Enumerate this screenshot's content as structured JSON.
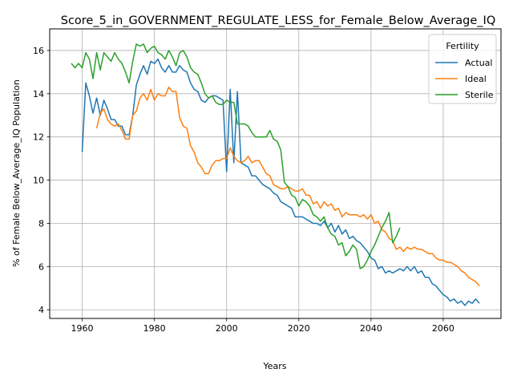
{
  "chart_data": {
    "type": "line",
    "title": "Score_5_in_GOVERNMENT_REGULATE_LESS_for_Female_Below_Average_IQ",
    "xlabel": "Years",
    "ylabel": "% of Female Below_Average_IQ Population",
    "xlim": [
      1951,
      2076
    ],
    "ylim": [
      3.6,
      17.0
    ],
    "xticks": [
      1960,
      1980,
      2000,
      2020,
      2040,
      2060
    ],
    "yticks": [
      4,
      6,
      8,
      10,
      12,
      14,
      16
    ],
    "grid": true,
    "legend": {
      "title": "Fertility",
      "placement": "top-right"
    },
    "series": [
      {
        "name": "Actual",
        "color": "#1f77b4",
        "points": [
          [
            1960,
            11.3
          ],
          [
            1961,
            14.5
          ],
          [
            1962,
            13.9
          ],
          [
            1963,
            13.1
          ],
          [
            1964,
            13.8
          ],
          [
            1965,
            13.0
          ],
          [
            1966,
            13.7
          ],
          [
            1967,
            13.3
          ],
          [
            1968,
            12.8
          ],
          [
            1969,
            12.8
          ],
          [
            1970,
            12.5
          ],
          [
            1971,
            12.5
          ],
          [
            1972,
            12.1
          ],
          [
            1973,
            12.1
          ],
          [
            1974,
            13.0
          ],
          [
            1975,
            14.4
          ],
          [
            1976,
            14.9
          ],
          [
            1977,
            15.3
          ],
          [
            1978,
            14.9
          ],
          [
            1979,
            15.5
          ],
          [
            1980,
            15.4
          ],
          [
            1981,
            15.6
          ],
          [
            1982,
            15.2
          ],
          [
            1983,
            15.0
          ],
          [
            1984,
            15.3
          ],
          [
            1985,
            15.0
          ],
          [
            1986,
            15.0
          ],
          [
            1987,
            15.3
          ],
          [
            1988,
            15.1
          ],
          [
            1989,
            15.0
          ],
          [
            1990,
            14.5
          ],
          [
            1991,
            14.2
          ],
          [
            1992,
            14.1
          ],
          [
            1993,
            13.7
          ],
          [
            1994,
            13.6
          ],
          [
            1995,
            13.8
          ],
          [
            1996,
            13.9
          ],
          [
            1997,
            13.9
          ],
          [
            1998,
            13.8
          ],
          [
            1999,
            13.7
          ],
          [
            2000,
            10.4
          ],
          [
            2001,
            14.2
          ],
          [
            2002,
            10.8
          ],
          [
            2003,
            14.1
          ],
          [
            2004,
            10.8
          ],
          [
            2005,
            10.7
          ],
          [
            2006,
            10.6
          ],
          [
            2007,
            10.2
          ],
          [
            2008,
            10.2
          ],
          [
            2009,
            10.0
          ],
          [
            2010,
            9.8
          ],
          [
            2011,
            9.7
          ],
          [
            2012,
            9.6
          ],
          [
            2013,
            9.4
          ],
          [
            2014,
            9.3
          ],
          [
            2015,
            9.0
          ],
          [
            2016,
            8.9
          ],
          [
            2017,
            8.8
          ],
          [
            2018,
            8.7
          ],
          [
            2019,
            8.3
          ],
          [
            2020,
            8.3
          ],
          [
            2021,
            8.3
          ],
          [
            2022,
            8.2
          ],
          [
            2023,
            8.1
          ],
          [
            2024,
            8.0
          ],
          [
            2025,
            8.0
          ],
          [
            2026,
            7.9
          ],
          [
            2027,
            8.1
          ],
          [
            2028,
            7.8
          ],
          [
            2029,
            8.0
          ],
          [
            2030,
            7.6
          ],
          [
            2031,
            7.9
          ],
          [
            2032,
            7.5
          ],
          [
            2033,
            7.7
          ],
          [
            2034,
            7.3
          ],
          [
            2035,
            7.4
          ],
          [
            2036,
            7.2
          ],
          [
            2037,
            7.1
          ],
          [
            2038,
            6.9
          ],
          [
            2039,
            6.7
          ],
          [
            2040,
            6.4
          ],
          [
            2041,
            6.3
          ],
          [
            2042,
            5.9
          ],
          [
            2043,
            6.0
          ],
          [
            2044,
            5.7
          ],
          [
            2045,
            5.8
          ],
          [
            2046,
            5.7
          ],
          [
            2047,
            5.8
          ],
          [
            2048,
            5.9
          ],
          [
            2049,
            5.8
          ],
          [
            2050,
            6.0
          ],
          [
            2051,
            5.8
          ],
          [
            2052,
            6.0
          ],
          [
            2053,
            5.7
          ],
          [
            2054,
            5.8
          ],
          [
            2055,
            5.5
          ],
          [
            2056,
            5.5
          ],
          [
            2057,
            5.2
          ],
          [
            2058,
            5.1
          ],
          [
            2059,
            4.9
          ],
          [
            2060,
            4.7
          ],
          [
            2061,
            4.6
          ],
          [
            2062,
            4.4
          ],
          [
            2063,
            4.5
          ],
          [
            2064,
            4.3
          ],
          [
            2065,
            4.4
          ],
          [
            2066,
            4.2
          ],
          [
            2067,
            4.4
          ],
          [
            2068,
            4.3
          ],
          [
            2069,
            4.5
          ],
          [
            2070,
            4.3
          ]
        ]
      },
      {
        "name": "Ideal",
        "color": "#ff7f0e",
        "points": [
          [
            1964,
            12.4
          ],
          [
            1965,
            13.1
          ],
          [
            1966,
            13.3
          ],
          [
            1967,
            12.8
          ],
          [
            1968,
            12.6
          ],
          [
            1969,
            12.5
          ],
          [
            1970,
            12.6
          ],
          [
            1971,
            12.3
          ],
          [
            1972,
            11.9
          ],
          [
            1973,
            11.9
          ],
          [
            1974,
            13.0
          ],
          [
            1975,
            13.2
          ],
          [
            1976,
            13.8
          ],
          [
            1977,
            14.0
          ],
          [
            1978,
            13.7
          ],
          [
            1979,
            14.2
          ],
          [
            1980,
            13.7
          ],
          [
            1981,
            14.0
          ],
          [
            1982,
            13.9
          ],
          [
            1983,
            13.9
          ],
          [
            1984,
            14.3
          ],
          [
            1985,
            14.1
          ],
          [
            1986,
            14.1
          ],
          [
            1987,
            12.9
          ],
          [
            1988,
            12.5
          ],
          [
            1989,
            12.4
          ],
          [
            1990,
            11.6
          ],
          [
            1991,
            11.3
          ],
          [
            1992,
            10.8
          ],
          [
            1993,
            10.6
          ],
          [
            1994,
            10.3
          ],
          [
            1995,
            10.3
          ],
          [
            1996,
            10.7
          ],
          [
            1997,
            10.9
          ],
          [
            1998,
            10.9
          ],
          [
            1999,
            11.0
          ],
          [
            2000,
            11.0
          ],
          [
            2001,
            11.5
          ],
          [
            2002,
            11.1
          ],
          [
            2003,
            10.9
          ],
          [
            2004,
            10.8
          ],
          [
            2005,
            10.9
          ],
          [
            2006,
            11.1
          ],
          [
            2007,
            10.8
          ],
          [
            2008,
            10.9
          ],
          [
            2009,
            10.9
          ],
          [
            2010,
            10.6
          ],
          [
            2011,
            10.3
          ],
          [
            2012,
            10.2
          ],
          [
            2013,
            9.8
          ],
          [
            2014,
            9.7
          ],
          [
            2015,
            9.6
          ],
          [
            2016,
            9.6
          ],
          [
            2017,
            9.7
          ],
          [
            2018,
            9.6
          ],
          [
            2019,
            9.5
          ],
          [
            2020,
            9.5
          ],
          [
            2021,
            9.6
          ],
          [
            2022,
            9.3
          ],
          [
            2023,
            9.3
          ],
          [
            2024,
            8.9
          ],
          [
            2025,
            9.0
          ],
          [
            2026,
            8.7
          ],
          [
            2027,
            9.0
          ],
          [
            2028,
            8.8
          ],
          [
            2029,
            8.9
          ],
          [
            2030,
            8.6
          ],
          [
            2031,
            8.7
          ],
          [
            2032,
            8.3
          ],
          [
            2033,
            8.5
          ],
          [
            2034,
            8.4
          ],
          [
            2035,
            8.4
          ],
          [
            2036,
            8.4
          ],
          [
            2037,
            8.3
          ],
          [
            2038,
            8.4
          ],
          [
            2039,
            8.2
          ],
          [
            2040,
            8.4
          ],
          [
            2041,
            8.0
          ],
          [
            2042,
            8.1
          ],
          [
            2043,
            7.7
          ],
          [
            2044,
            7.6
          ],
          [
            2045,
            7.3
          ],
          [
            2046,
            7.2
          ],
          [
            2047,
            6.8
          ],
          [
            2048,
            6.9
          ],
          [
            2049,
            6.7
          ],
          [
            2050,
            6.9
          ],
          [
            2051,
            6.8
          ],
          [
            2052,
            6.9
          ],
          [
            2053,
            6.8
          ],
          [
            2054,
            6.8
          ],
          [
            2055,
            6.7
          ],
          [
            2056,
            6.6
          ],
          [
            2057,
            6.6
          ],
          [
            2058,
            6.4
          ],
          [
            2059,
            6.3
          ],
          [
            2060,
            6.3
          ],
          [
            2061,
            6.2
          ],
          [
            2062,
            6.2
          ],
          [
            2063,
            6.1
          ],
          [
            2064,
            6.0
          ],
          [
            2065,
            5.8
          ],
          [
            2066,
            5.7
          ],
          [
            2067,
            5.5
          ],
          [
            2068,
            5.4
          ],
          [
            2069,
            5.3
          ],
          [
            2070,
            5.1
          ]
        ]
      },
      {
        "name": "Sterile",
        "color": "#2ca02c",
        "points": [
          [
            1957,
            15.4
          ],
          [
            1958,
            15.2
          ],
          [
            1959,
            15.4
          ],
          [
            1960,
            15.2
          ],
          [
            1961,
            15.9
          ],
          [
            1962,
            15.6
          ],
          [
            1963,
            14.7
          ],
          [
            1964,
            15.9
          ],
          [
            1965,
            15.1
          ],
          [
            1966,
            15.9
          ],
          [
            1967,
            15.7
          ],
          [
            1968,
            15.5
          ],
          [
            1969,
            15.9
          ],
          [
            1970,
            15.6
          ],
          [
            1971,
            15.4
          ],
          [
            1972,
            15.0
          ],
          [
            1973,
            14.5
          ],
          [
            1974,
            15.5
          ],
          [
            1975,
            16.3
          ],
          [
            1976,
            16.2
          ],
          [
            1977,
            16.3
          ],
          [
            1978,
            15.9
          ],
          [
            1979,
            16.1
          ],
          [
            1980,
            16.2
          ],
          [
            1981,
            15.9
          ],
          [
            1982,
            15.8
          ],
          [
            1983,
            15.6
          ],
          [
            1984,
            16.0
          ],
          [
            1985,
            15.7
          ],
          [
            1986,
            15.3
          ],
          [
            1987,
            15.9
          ],
          [
            1988,
            16.0
          ],
          [
            1989,
            15.7
          ],
          [
            1990,
            15.2
          ],
          [
            1991,
            15.0
          ],
          [
            1992,
            14.9
          ],
          [
            1993,
            14.5
          ],
          [
            1994,
            14.0
          ],
          [
            1995,
            13.8
          ],
          [
            1996,
            13.9
          ],
          [
            1997,
            13.6
          ],
          [
            1998,
            13.5
          ],
          [
            1999,
            13.5
          ],
          [
            2000,
            13.7
          ],
          [
            2001,
            13.6
          ],
          [
            2002,
            13.6
          ],
          [
            2003,
            12.6
          ],
          [
            2004,
            12.6
          ],
          [
            2005,
            12.6
          ],
          [
            2006,
            12.5
          ],
          [
            2007,
            12.2
          ],
          [
            2008,
            12.0
          ],
          [
            2009,
            12.0
          ],
          [
            2010,
            12.0
          ],
          [
            2011,
            12.0
          ],
          [
            2012,
            12.3
          ],
          [
            2013,
            11.9
          ],
          [
            2014,
            11.8
          ],
          [
            2015,
            11.4
          ],
          [
            2016,
            9.9
          ],
          [
            2017,
            9.7
          ],
          [
            2018,
            9.3
          ],
          [
            2019,
            9.2
          ],
          [
            2020,
            8.8
          ],
          [
            2021,
            9.1
          ],
          [
            2022,
            9.0
          ],
          [
            2023,
            8.8
          ],
          [
            2024,
            8.4
          ],
          [
            2025,
            8.3
          ],
          [
            2026,
            8.1
          ],
          [
            2027,
            8.3
          ],
          [
            2028,
            7.8
          ],
          [
            2029,
            7.5
          ],
          [
            2030,
            7.4
          ],
          [
            2031,
            7.0
          ],
          [
            2032,
            7.1
          ],
          [
            2033,
            6.5
          ],
          [
            2034,
            6.7
          ],
          [
            2035,
            7.0
          ],
          [
            2036,
            6.8
          ],
          [
            2037,
            5.9
          ],
          [
            2038,
            6.0
          ],
          [
            2039,
            6.3
          ],
          [
            2040,
            6.7
          ],
          [
            2041,
            7.0
          ],
          [
            2042,
            7.4
          ],
          [
            2043,
            7.8
          ],
          [
            2044,
            8.1
          ],
          [
            2045,
            8.5
          ],
          [
            2046,
            7.1
          ],
          [
            2047,
            7.4
          ],
          [
            2048,
            7.8
          ]
        ]
      }
    ]
  }
}
